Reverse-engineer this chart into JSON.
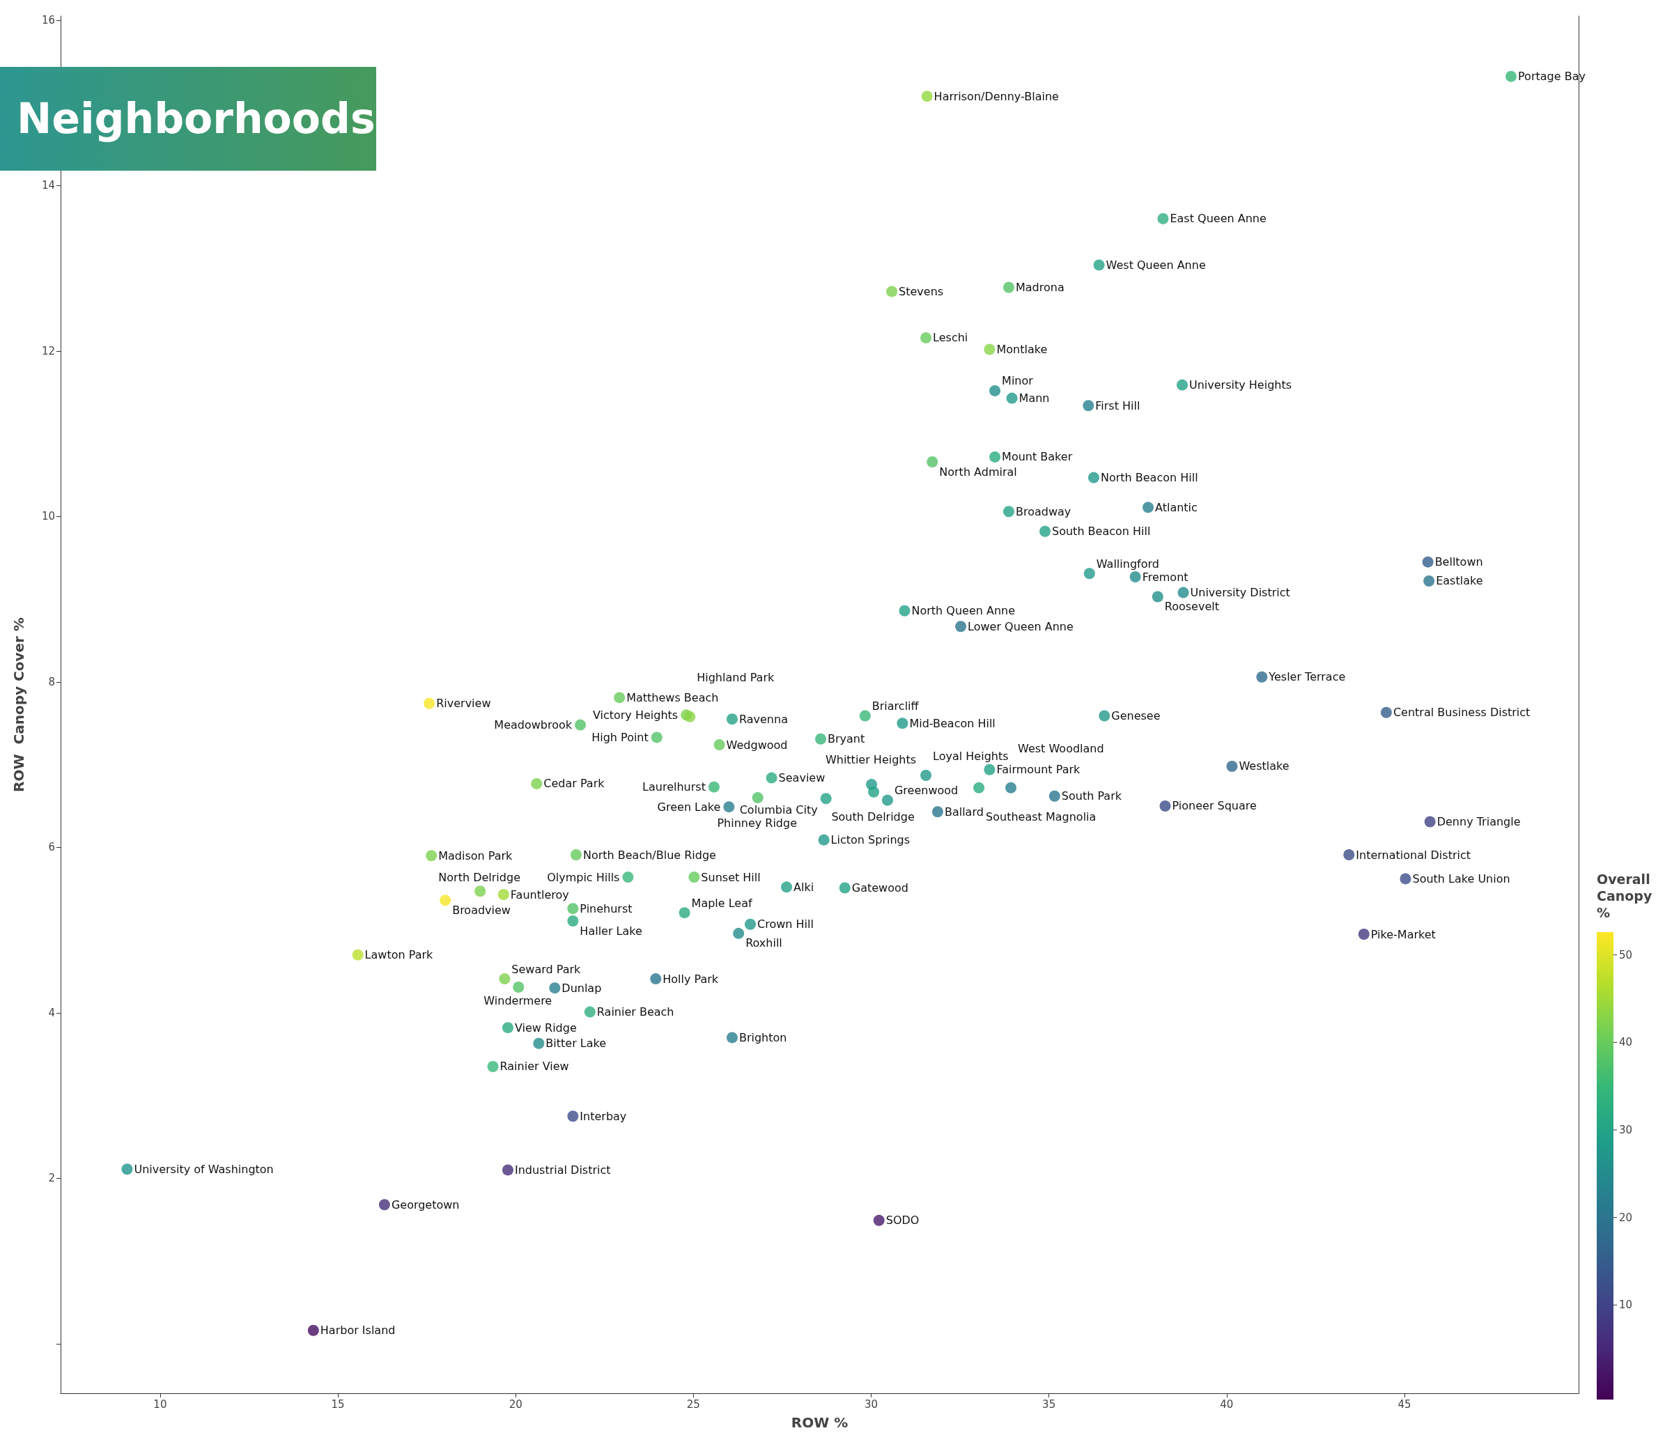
{
  "chart_data": {
    "type": "scatter",
    "title": "Neighborhoods",
    "xlabel": "ROW %",
    "ylabel": "ROW  Canopy Cover %",
    "clabel": "Overall Canopy %",
    "marker": "circle",
    "grid": false,
    "xlim": [
      7.2,
      49.9
    ],
    "ylim": [
      -0.6,
      16.05
    ],
    "xticks": [
      10,
      15,
      20,
      25,
      30,
      35,
      40,
      45
    ],
    "yticks": [
      {
        "value": 0,
        "label": null
      },
      2,
      4,
      6,
      8,
      10,
      12,
      14,
      16
    ],
    "clim": [
      -0.8,
      52.6
    ],
    "cticks": [
      10,
      20,
      30,
      40,
      50
    ],
    "x": [
      48.0,
      31.57,
      38.21,
      36.41,
      30.58,
      33.87,
      31.54,
      33.33,
      33.48,
      33.96,
      36.11,
      38.75,
      31.72,
      33.48,
      36.26,
      37.79,
      33.87,
      34.89,
      45.66,
      45.69,
      36.14,
      37.43,
      38.78,
      38.06,
      30.94,
      32.52,
      40.99,
      22.92,
      17.57,
      24.8,
      24.9,
      26.09,
      29.83,
      30.88,
      36.56,
      44.49,
      21.82,
      23.97,
      25.73,
      28.58,
      40.15,
      20.59,
      25.58,
      27.2,
      31.54,
      33.33,
      30.01,
      30.07,
      33.03,
      33.93,
      35.16,
      26.81,
      28.73,
      30.46,
      26.0,
      31.87,
      38.27,
      45.72,
      28.67,
      17.63,
      21.7,
      43.44,
      23.16,
      25.02,
      45.03,
      27.62,
      29.26,
      19.0,
      19.66,
      18.02,
      21.61,
      21.61,
      24.75,
      26.6,
      26.27,
      43.86,
      15.56,
      19.69,
      23.94,
      20.08,
      21.1,
      22.09,
      19.78,
      26.09,
      20.65,
      19.36,
      21.61,
      9.07,
      19.78,
      16.31,
      30.22,
      14.31
    ],
    "values": [
      15.32,
      15.08,
      13.6,
      13.04,
      12.72,
      12.77,
      12.16,
      12.02,
      11.52,
      11.43,
      11.34,
      11.59,
      10.66,
      10.72,
      10.47,
      10.11,
      10.06,
      9.82,
      9.45,
      9.22,
      9.31,
      9.27,
      9.08,
      9.03,
      8.86,
      8.67,
      8.06,
      7.81,
      7.74,
      7.6,
      7.58,
      7.55,
      7.59,
      7.5,
      7.59,
      7.63,
      7.48,
      7.33,
      7.24,
      7.31,
      6.98,
      6.77,
      6.73,
      6.84,
      6.87,
      6.94,
      6.76,
      6.67,
      6.72,
      6.72,
      6.62,
      6.6,
      6.59,
      6.57,
      6.49,
      6.43,
      6.5,
      6.31,
      6.09,
      5.9,
      5.91,
      5.91,
      5.64,
      5.64,
      5.62,
      5.52,
      5.51,
      5.47,
      5.43,
      5.36,
      5.26,
      5.11,
      5.21,
      5.07,
      4.96,
      4.95,
      4.7,
      4.41,
      4.41,
      4.31,
      4.3,
      4.01,
      3.82,
      3.7,
      3.63,
      3.35,
      2.75,
      2.11,
      2.1,
      1.68,
      1.49,
      0.16
    ],
    "cvalues": [
      35,
      44,
      33,
      30,
      42,
      38,
      40,
      43,
      26,
      28,
      22,
      30,
      38,
      32,
      28,
      22,
      30,
      30,
      15,
      20,
      28,
      25,
      25,
      26,
      30,
      20,
      18,
      40,
      52,
      42,
      43,
      30,
      35,
      28,
      28,
      15,
      38,
      38,
      40,
      35,
      17,
      42,
      35,
      32,
      28,
      30,
      28,
      30,
      32,
      22,
      20,
      38,
      30,
      28,
      22,
      20,
      12,
      10,
      28,
      42,
      40,
      12,
      35,
      40,
      12,
      30,
      30,
      42,
      45,
      52,
      38,
      32,
      32,
      28,
      25,
      8,
      47,
      42,
      20,
      38,
      22,
      33,
      32,
      22,
      25,
      35,
      12,
      27,
      6,
      6,
      3,
      1
    ],
    "annotations": [
      {
        "text": "Portage Bay",
        "x": 48.0,
        "y": 15.32
      },
      {
        "text": "Harrison/Denny-Blaine",
        "x": 31.57,
        "y": 15.08
      },
      {
        "text": "East Queen Anne",
        "x": 38.21,
        "y": 13.6
      },
      {
        "text": "West Queen Anne",
        "x": 36.41,
        "y": 13.04
      },
      {
        "text": "Stevens",
        "x": 30.58,
        "y": 12.72
      },
      {
        "text": "Madrona",
        "x": 33.87,
        "y": 12.77
      },
      {
        "text": "Leschi",
        "x": 31.54,
        "y": 12.16
      },
      {
        "text": "Montlake",
        "x": 33.33,
        "y": 12.02
      },
      {
        "text": "Minor",
        "x": 33.48,
        "y": 11.52
      },
      {
        "text": "Mann",
        "x": 33.96,
        "y": 11.43
      },
      {
        "text": "First Hill",
        "x": 36.11,
        "y": 11.34
      },
      {
        "text": "University Heights",
        "x": 38.75,
        "y": 11.59
      },
      {
        "text": "North Admiral",
        "x": 31.72,
        "y": 10.66
      },
      {
        "text": "Mount Baker",
        "x": 33.48,
        "y": 10.72
      },
      {
        "text": "North Beacon Hill",
        "x": 36.26,
        "y": 10.47
      },
      {
        "text": "Atlantic",
        "x": 37.79,
        "y": 10.11
      },
      {
        "text": "Broadway",
        "x": 33.87,
        "y": 10.06
      },
      {
        "text": "South Beacon Hill",
        "x": 34.89,
        "y": 9.82
      },
      {
        "text": "Belltown",
        "x": 45.66,
        "y": 9.45
      },
      {
        "text": "Eastlake",
        "x": 45.69,
        "y": 9.22
      },
      {
        "text": "Wallingford",
        "x": 36.14,
        "y": 9.31
      },
      {
        "text": "Fremont",
        "x": 37.43,
        "y": 9.27
      },
      {
        "text": "University District",
        "x": 38.78,
        "y": 9.08
      },
      {
        "text": "Roosevelt",
        "x": 38.06,
        "y": 9.03
      },
      {
        "text": "North Queen Anne",
        "x": 30.94,
        "y": 8.86
      },
      {
        "text": "Lower Queen Anne",
        "x": 32.52,
        "y": 8.67
      },
      {
        "text": "Yesler Terrace",
        "x": 40.99,
        "y": 8.06
      },
      {
        "text": "Matthews Beach",
        "x": 22.92,
        "y": 7.81
      },
      {
        "text": "Riverview",
        "x": 17.57,
        "y": 7.74
      },
      {
        "text": "Victory Heights",
        "x": 24.8,
        "y": 7.6
      },
      {
        "text": "Highland Park",
        "x": 24.9,
        "y": 7.58
      },
      {
        "text": "Ravenna",
        "x": 26.09,
        "y": 7.55
      },
      {
        "text": "Briarcliff",
        "x": 29.83,
        "y": 7.59
      },
      {
        "text": "Mid-Beacon Hill",
        "x": 30.88,
        "y": 7.5
      },
      {
        "text": "Genesee",
        "x": 36.56,
        "y": 7.59
      },
      {
        "text": "Central Business District",
        "x": 44.49,
        "y": 7.63
      },
      {
        "text": "Meadowbrook",
        "x": 21.82,
        "y": 7.48
      },
      {
        "text": "High Point",
        "x": 23.97,
        "y": 7.33
      },
      {
        "text": "Wedgwood",
        "x": 25.73,
        "y": 7.24
      },
      {
        "text": "Bryant",
        "x": 28.58,
        "y": 7.31
      },
      {
        "text": "Westlake",
        "x": 40.15,
        "y": 6.98
      },
      {
        "text": "Cedar Park",
        "x": 20.59,
        "y": 6.77
      },
      {
        "text": "Laurelhurst",
        "x": 25.58,
        "y": 6.73
      },
      {
        "text": "Seaview",
        "x": 27.2,
        "y": 6.84
      },
      {
        "text": "Loyal Heights",
        "x": 31.54,
        "y": 6.87
      },
      {
        "text": "Fairmount Park",
        "x": 33.33,
        "y": 6.94
      },
      {
        "text": "Whittier Heights",
        "x": 30.01,
        "y": 6.76
      },
      {
        "text": "South Delridge",
        "x": 30.07,
        "y": 6.67
      },
      {
        "text": "Southeast Magnolia",
        "x": 33.03,
        "y": 6.72
      },
      {
        "text": "West Woodland",
        "x": 33.93,
        "y": 6.72
      },
      {
        "text": "South Park",
        "x": 35.16,
        "y": 6.62
      },
      {
        "text": "Phinney Ridge",
        "x": 26.81,
        "y": 6.6
      },
      {
        "text": "Columbia City",
        "x": 28.73,
        "y": 6.59
      },
      {
        "text": "Greenwood",
        "x": 30.46,
        "y": 6.57
      },
      {
        "text": "Green Lake",
        "x": 26.0,
        "y": 6.49
      },
      {
        "text": "Ballard",
        "x": 31.87,
        "y": 6.43
      },
      {
        "text": "Pioneer Square",
        "x": 38.27,
        "y": 6.5
      },
      {
        "text": "Denny Triangle",
        "x": 45.72,
        "y": 6.31
      },
      {
        "text": "Licton Springs",
        "x": 28.67,
        "y": 6.09
      },
      {
        "text": "Madison Park",
        "x": 17.63,
        "y": 5.9
      },
      {
        "text": "North Beach/Blue Ridge",
        "x": 21.7,
        "y": 5.91
      },
      {
        "text": "International District",
        "x": 43.44,
        "y": 5.91
      },
      {
        "text": "Olympic Hills",
        "x": 23.16,
        "y": 5.64
      },
      {
        "text": "Sunset Hill",
        "x": 25.02,
        "y": 5.64
      },
      {
        "text": "South Lake Union",
        "x": 45.03,
        "y": 5.62
      },
      {
        "text": "Alki",
        "x": 27.62,
        "y": 5.52
      },
      {
        "text": "Gatewood",
        "x": 29.26,
        "y": 5.51
      },
      {
        "text": "North Delridge",
        "x": 19.0,
        "y": 5.47
      },
      {
        "text": "Fauntleroy",
        "x": 19.66,
        "y": 5.43
      },
      {
        "text": "Broadview",
        "x": 18.02,
        "y": 5.36
      },
      {
        "text": "Pinehurst",
        "x": 21.61,
        "y": 5.26
      },
      {
        "text": "Haller Lake",
        "x": 21.61,
        "y": 5.11
      },
      {
        "text": "Maple Leaf",
        "x": 24.75,
        "y": 5.21
      },
      {
        "text": "Crown Hill",
        "x": 26.6,
        "y": 5.07
      },
      {
        "text": "Roxhill",
        "x": 26.27,
        "y": 4.96
      },
      {
        "text": "Pike-Market",
        "x": 43.86,
        "y": 4.95
      },
      {
        "text": "Lawton Park",
        "x": 15.56,
        "y": 4.7
      },
      {
        "text": "Seward Park",
        "x": 19.69,
        "y": 4.41
      },
      {
        "text": "Holly Park",
        "x": 23.94,
        "y": 4.41
      },
      {
        "text": "Windermere",
        "x": 20.08,
        "y": 4.31
      },
      {
        "text": "Dunlap",
        "x": 21.1,
        "y": 4.3
      },
      {
        "text": "Rainier Beach",
        "x": 22.09,
        "y": 4.01
      },
      {
        "text": "View Ridge",
        "x": 19.78,
        "y": 3.82
      },
      {
        "text": "Brighton",
        "x": 26.09,
        "y": 3.7
      },
      {
        "text": "Bitter Lake",
        "x": 20.65,
        "y": 3.63
      },
      {
        "text": "Rainier View",
        "x": 19.36,
        "y": 3.35
      },
      {
        "text": "Interbay",
        "x": 21.61,
        "y": 2.75
      },
      {
        "text": "University of Washington",
        "x": 9.07,
        "y": 2.11
      },
      {
        "text": "Industrial District",
        "x": 19.78,
        "y": 2.1
      },
      {
        "text": "Georgetown",
        "x": 16.31,
        "y": 1.68
      },
      {
        "text": "SODO",
        "x": 30.22,
        "y": 1.49
      },
      {
        "text": "Harbor Island",
        "x": 14.31,
        "y": 0.16
      }
    ]
  }
}
